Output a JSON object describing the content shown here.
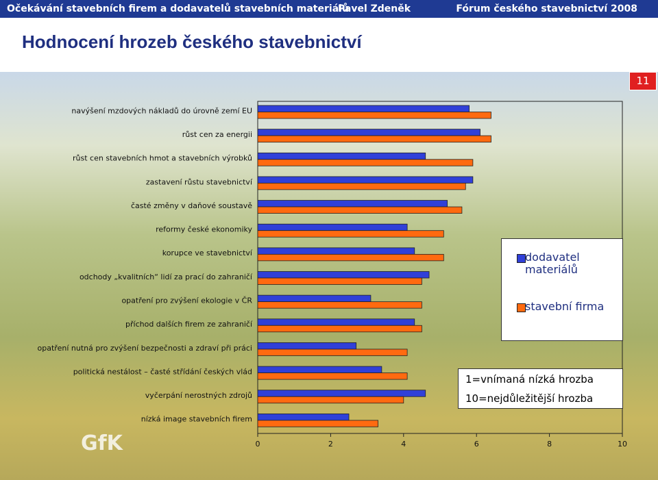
{
  "header": {
    "left": "Očekávání stavebních firem a dodavatelů stavebních materiálů",
    "center": "Pavel Zdeněk",
    "right": "Fórum českého stavebnictví 2008"
  },
  "slide_title": "Hodnocení hrozeb českého stavebnictví",
  "page_number": "11",
  "logo": "GfK",
  "chart_data": {
    "type": "hbar",
    "categories": [
      "navýšení mzdových nákladů do úrovně zemí EU",
      "růst cen za energii",
      "růst cen stavebních hmot a stavebních výrobků",
      "zastavení růstu stavebnictví",
      "časté změny v daňové soustavě",
      "reformy české ekonomiky",
      "korupce ve stavebnictví",
      "odchody „kvalitních“ lidí za prací do zahraničí",
      "opatření pro zvýšení ekologie v ČR",
      "příchod dalších firem ze zahraničí",
      "opatření nutná pro zvýšení bezpečnosti a zdraví při práci",
      "politická nestálost – časté střídání českých vlád",
      "vyčerpání nerostných zdrojů",
      "nízká image stavebních firem"
    ],
    "series": [
      {
        "name": "dodavatel materiálů",
        "color": "#3040d8",
        "values": [
          5.8,
          6.1,
          4.6,
          5.9,
          5.2,
          4.1,
          4.3,
          4.7,
          3.1,
          4.3,
          2.7,
          3.4,
          4.6,
          2.5
        ]
      },
      {
        "name": "stavební firma",
        "color": "#ff6a10",
        "values": [
          6.4,
          6.4,
          5.9,
          5.7,
          5.6,
          5.1,
          5.1,
          4.5,
          4.5,
          4.5,
          4.1,
          4.1,
          4.0,
          3.3
        ]
      }
    ],
    "xlim": [
      0,
      10
    ],
    "xticks": [
      0,
      2,
      4,
      6,
      8,
      10
    ],
    "grid": false,
    "annotations": [
      "1=vnímaná nízká hrozba",
      "10=nejdůležitější hrozba"
    ]
  }
}
